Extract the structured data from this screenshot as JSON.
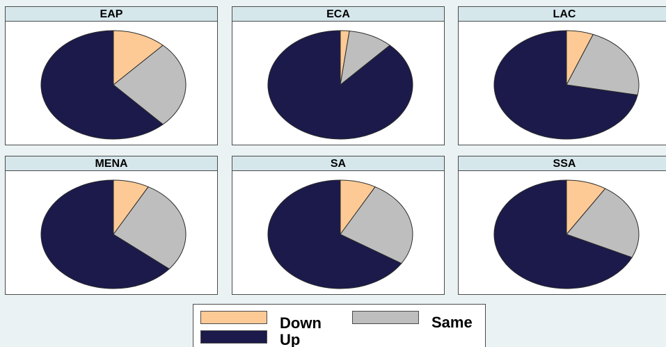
{
  "colors": {
    "down": "#fdca96",
    "same": "#bebebe",
    "up": "#1b1a4b",
    "edge": "#2a2a2a"
  },
  "legend": {
    "down": "Down",
    "same": "Same",
    "up": "Up"
  },
  "chart_data": {
    "type": "pie",
    "series_names": [
      "Down",
      "Same",
      "Up"
    ],
    "panels": [
      {
        "label": "EAP",
        "values": [
          12,
          26,
          62
        ]
      },
      {
        "label": "ECA",
        "values": [
          2,
          10,
          88
        ]
      },
      {
        "label": "LAC",
        "values": [
          6,
          22,
          72
        ]
      },
      {
        "label": "MENA",
        "values": [
          8,
          28,
          64
        ]
      },
      {
        "label": "SA",
        "values": [
          8,
          26,
          66
        ]
      },
      {
        "label": "SSA",
        "values": [
          9,
          23,
          68
        ]
      }
    ]
  }
}
